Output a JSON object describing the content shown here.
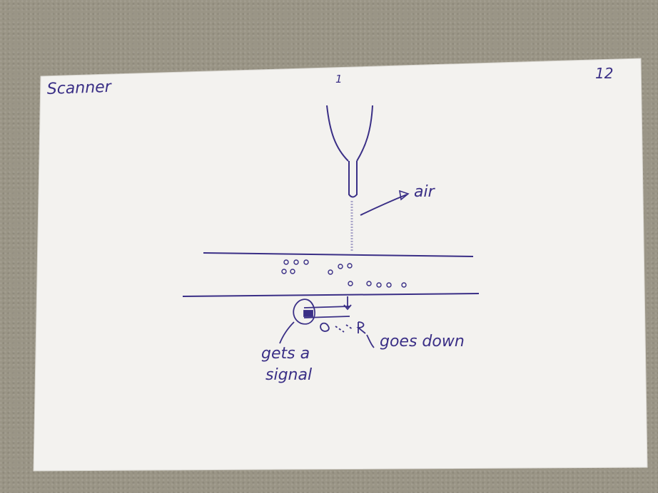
{
  "card": {
    "title": "Scanner",
    "page_number": "12",
    "top_mark": "1",
    "labels": {
      "air": "air",
      "goes_down": "goes down",
      "gets_a": "gets a",
      "signal": "signal"
    },
    "colors": {
      "ink": "#3a2f86",
      "paper": "#f3f2ef",
      "background": "#9a9586"
    }
  }
}
